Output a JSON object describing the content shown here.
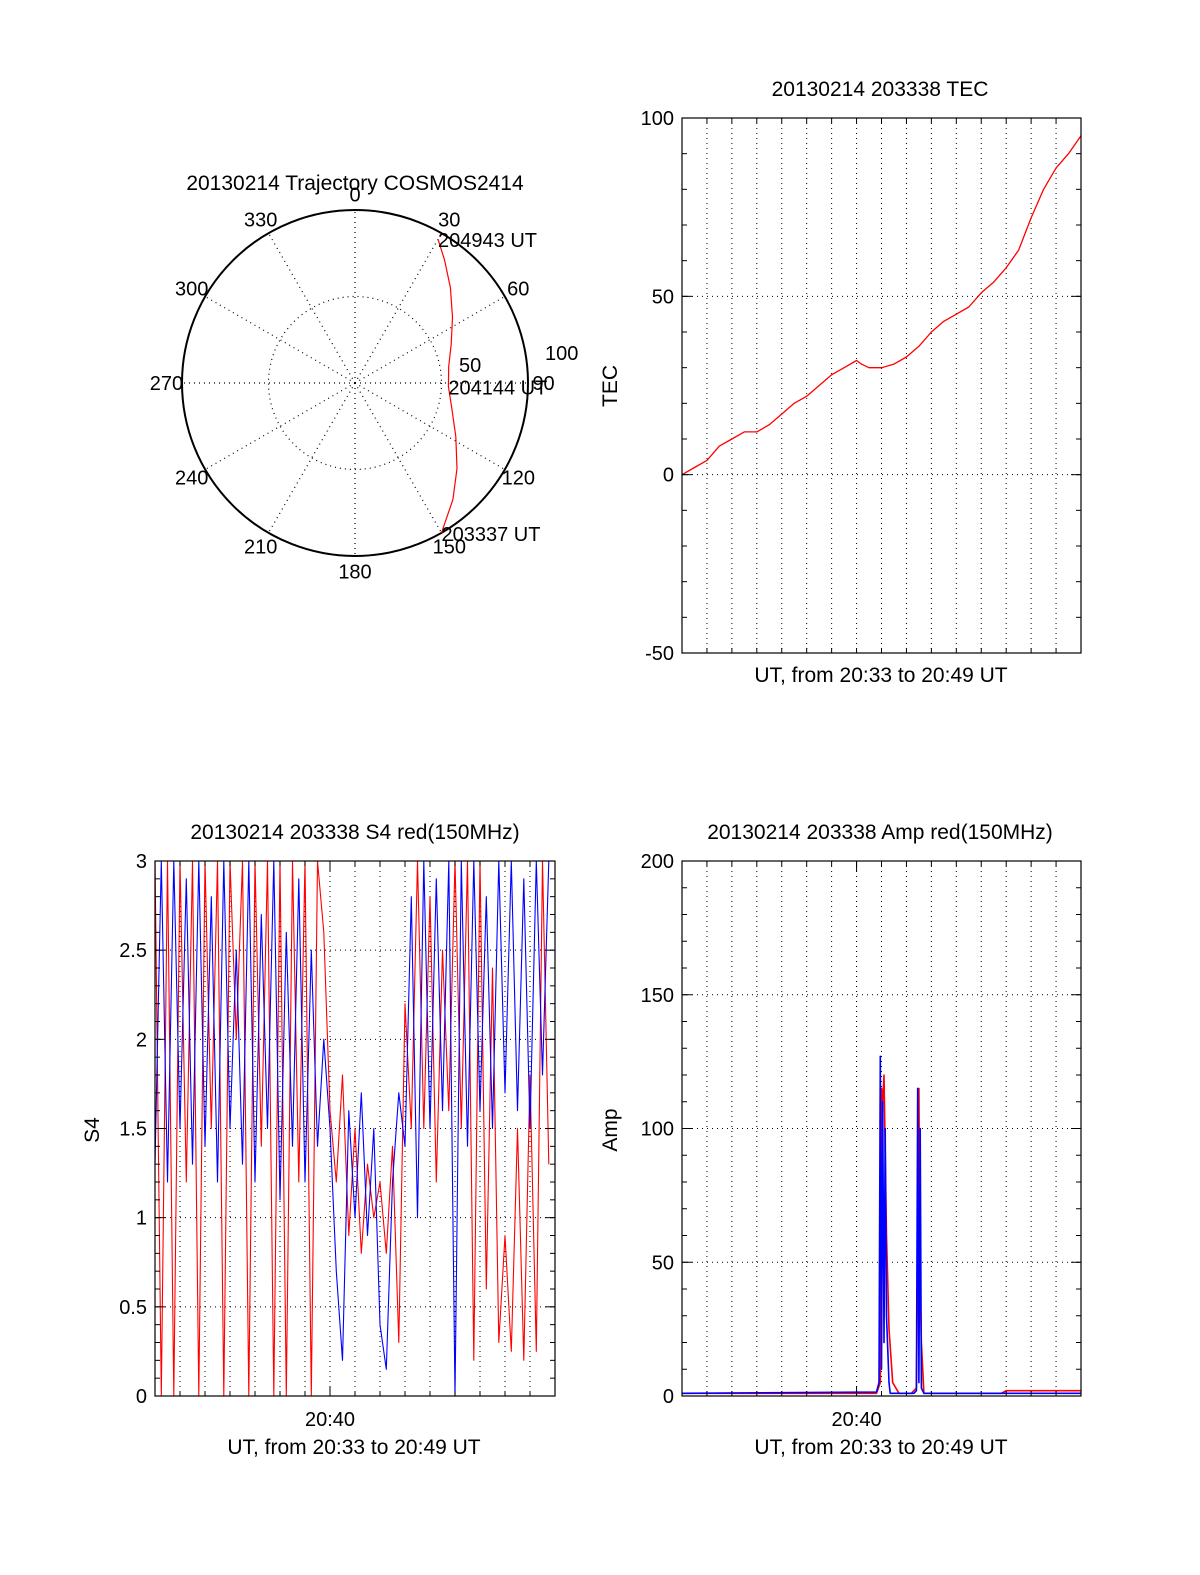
{
  "colors": {
    "red": "#ff0000",
    "blue": "#0000ff",
    "axis": "#000000",
    "background": "#ffffff"
  },
  "chart_data": [
    {
      "id": "trajectory",
      "type": "polar",
      "title": "20130214 Trajectory COSMOS2414",
      "azimuth_labels": [
        "0",
        "30",
        "60",
        "90",
        "120",
        "150",
        "180",
        "210",
        "240",
        "270",
        "300",
        "330"
      ],
      "radial_labels": [
        "50",
        "100"
      ],
      "grid": true,
      "series": [
        {
          "color": "red",
          "points": [
            {
              "az": 150,
              "r": 100
            },
            {
              "az": 140,
              "r": 88
            },
            {
              "az": 130,
              "r": 77
            },
            {
              "az": 118,
              "r": 66
            },
            {
              "az": 105,
              "r": 58
            },
            {
              "az": 92,
              "r": 54
            },
            {
              "az": 80,
              "r": 55
            },
            {
              "az": 68,
              "r": 60
            },
            {
              "az": 56,
              "r": 68
            },
            {
              "az": 45,
              "r": 78
            },
            {
              "az": 36,
              "r": 88
            },
            {
              "az": 30,
              "r": 96
            }
          ]
        }
      ],
      "annotations": [
        {
          "text": "203337 UT",
          "az": 150,
          "r": 100
        },
        {
          "text": "204144 UT",
          "az": 92,
          "r": 54
        },
        {
          "text": "204943 UT",
          "az": 30,
          "r": 96
        }
      ]
    },
    {
      "id": "tec",
      "type": "line",
      "title": "20130214 203338 TEC",
      "xlabel": "UT, from 20:33 to 20:49 UT",
      "ylabel": "TEC",
      "xlim": [
        0,
        16
      ],
      "ylim": [
        -50,
        100
      ],
      "yticks": [
        -50,
        0,
        50,
        100
      ],
      "xtick_labels": [],
      "grid": true,
      "series": [
        {
          "color": "red",
          "x": [
            0,
            0.5,
            1,
            1.5,
            2,
            2.5,
            3,
            3.5,
            4,
            4.5,
            5,
            5.5,
            6,
            6.5,
            7,
            7.2,
            7.5,
            8,
            8.5,
            9,
            9.5,
            10,
            10.5,
            11,
            11.5,
            12,
            12.5,
            13,
            13.5,
            14,
            14.5,
            15,
            15.5,
            16
          ],
          "y": [
            0,
            2,
            4,
            8,
            10,
            12,
            12,
            14,
            17,
            20,
            22,
            25,
            28,
            30,
            32,
            31,
            30,
            30,
            31,
            33,
            36,
            40,
            43,
            45,
            47,
            51,
            54,
            58,
            63,
            72,
            80,
            86,
            90,
            95
          ]
        }
      ]
    },
    {
      "id": "s4",
      "type": "line",
      "title": "20130214 203338 S4 red(150MHz)",
      "xlabel": "UT, from 20:33 to 20:49 UT",
      "ylabel": "S4",
      "xlim": [
        0,
        16
      ],
      "ylim": [
        0,
        3
      ],
      "yticks": [
        0,
        0.5,
        1,
        1.5,
        2,
        2.5,
        3
      ],
      "ytick_labels": [
        "0",
        "0.5",
        "1",
        "1.5",
        "2",
        "2.5",
        "3"
      ],
      "xticks": [
        {
          "x": 7,
          "label": "20:40"
        }
      ],
      "grid": true,
      "series": [
        {
          "color": "red",
          "x": [
            0,
            0.25,
            0.5,
            0.75,
            1,
            1.25,
            1.5,
            1.75,
            2,
            2.25,
            2.5,
            2.75,
            3,
            3.25,
            3.5,
            3.75,
            4,
            4.25,
            4.5,
            4.75,
            5,
            5.25,
            5.5,
            5.75,
            6,
            6.25,
            6.5,
            6.75,
            7,
            7.25,
            7.5,
            7.75,
            8,
            8.25,
            8.5,
            8.75,
            9,
            9.25,
            9.5,
            9.75,
            10,
            10.25,
            10.5,
            10.75,
            11,
            11.25,
            11.5,
            11.75,
            12,
            12.25,
            12.5,
            12.75,
            13,
            13.25,
            13.5,
            13.75,
            14,
            14.25,
            14.5,
            14.75,
            15,
            15.25,
            15.5,
            15.75
          ],
          "y": [
            3,
            0,
            3,
            0,
            3,
            1.2,
            3,
            0,
            3,
            1.5,
            3,
            0,
            3,
            2.0,
            3,
            0,
            3,
            1.4,
            3,
            0,
            3,
            0,
            3,
            1.2,
            3,
            0,
            3,
            2.6,
            1.6,
            1.2,
            1.8,
            0.9,
            1.5,
            0.8,
            1.3,
            1.0,
            1.2,
            0.8,
            1.4,
            0.3,
            2.2,
            1.5,
            3,
            1.5,
            2.8,
            1.2,
            2.5,
            1.6,
            3,
            1.5,
            3,
            0.2,
            3,
            0.6,
            2.4,
            0.3,
            0.9,
            0.25,
            1.5,
            0.2,
            1.8,
            0.25,
            3,
            1.3
          ]
        },
        {
          "color": "blue",
          "x": [
            0,
            0.25,
            0.5,
            0.75,
            1,
            1.25,
            1.5,
            1.75,
            2,
            2.25,
            2.5,
            2.75,
            3,
            3.25,
            3.5,
            3.75,
            4,
            4.25,
            4.5,
            4.75,
            5,
            5.25,
            5.5,
            5.75,
            6,
            6.25,
            6.5,
            6.75,
            7,
            7.25,
            7.5,
            7.75,
            8,
            8.25,
            8.5,
            8.75,
            9,
            9.25,
            9.5,
            9.75,
            10,
            10.25,
            10.5,
            10.75,
            11,
            11.25,
            11.5,
            11.75,
            12,
            12.25,
            12.5,
            12.75,
            13,
            13.25,
            13.5,
            13.75,
            14,
            14.25,
            14.5,
            14.75,
            15,
            15.25,
            15.5,
            15.75
          ],
          "y": [
            1.3,
            3,
            1.2,
            3,
            1.5,
            2.9,
            1.3,
            3,
            1.4,
            2.8,
            1.2,
            3,
            1.5,
            2.5,
            1.3,
            3,
            1.2,
            2.7,
            1.5,
            3,
            1.1,
            2.6,
            1.4,
            2.9,
            1.2,
            2.5,
            1.4,
            2.0,
            1.5,
            0.7,
            0.2,
            1.6,
            1.0,
            1.7,
            0.9,
            1.5,
            0.4,
            0.15,
            1.2,
            1.7,
            1.4,
            2.8,
            1.0,
            3,
            1.5,
            2.9,
            1.6,
            3,
            0,
            3,
            1.4,
            3,
            1.6,
            2.8,
            1.5,
            3,
            1.7,
            3,
            1.6,
            2.9,
            1.5,
            3,
            1.8,
            3
          ]
        }
      ]
    },
    {
      "id": "amp",
      "type": "line",
      "title": "20130214 203338 Amp red(150MHz)",
      "xlabel": "UT, from 20:33 to 20:49 UT",
      "ylabel": "Amp",
      "xlim": [
        0,
        16
      ],
      "ylim": [
        0,
        200
      ],
      "yticks": [
        0,
        50,
        100,
        150,
        200
      ],
      "xticks": [
        {
          "x": 7,
          "label": "20:40"
        }
      ],
      "grid": true,
      "series": [
        {
          "color": "red",
          "x": [
            0,
            7.8,
            7.95,
            8.0,
            8.05,
            8.1,
            8.2,
            8.3,
            8.45,
            8.7,
            9.2,
            9.4,
            9.45,
            9.5,
            9.55,
            9.6,
            9.7,
            9.8,
            12.8,
            13.0,
            16
          ],
          "y": [
            1,
            1,
            5,
            115,
            110,
            120,
            60,
            25,
            5,
            1,
            1,
            3,
            50,
            115,
            40,
            20,
            1,
            1,
            1,
            2,
            2
          ]
        },
        {
          "color": "blue",
          "x": [
            0,
            7.8,
            7.9,
            7.95,
            8.0,
            8.05,
            8.1,
            8.15,
            8.2,
            8.3,
            8.35,
            9.3,
            9.4,
            9.45,
            9.5,
            9.55,
            9.6,
            9.65,
            9.7,
            16
          ],
          "y": [
            1,
            1.5,
            5,
            127,
            10,
            110,
            20,
            100,
            30,
            5,
            1,
            1,
            2,
            115,
            5,
            100,
            3,
            2,
            1,
            1
          ]
        }
      ]
    }
  ]
}
